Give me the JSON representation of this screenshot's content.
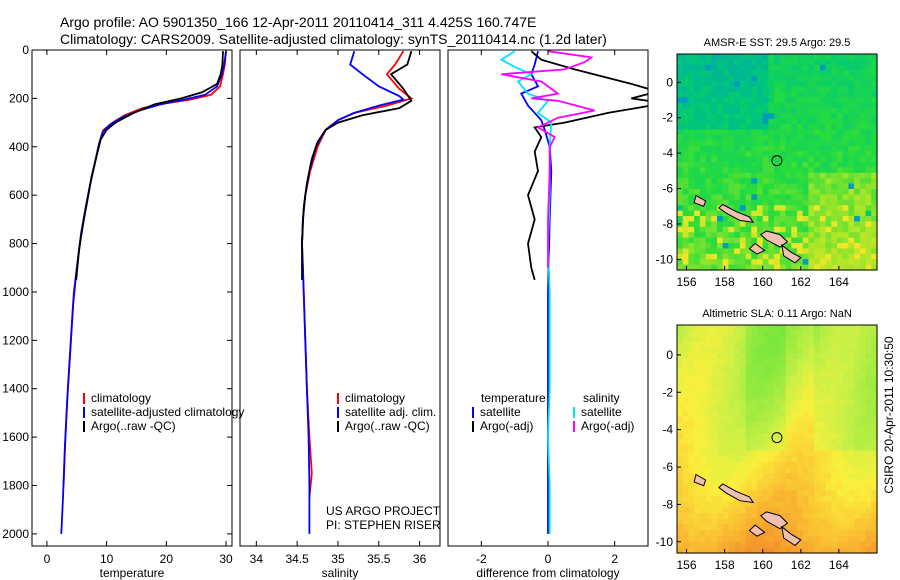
{
  "header": {
    "line1": "Argo profile: AO 5901350_166 12-Apr-2011 20110414_311 4.425S 160.747E",
    "line2": "Climatology: CARS2009. Satellite-adjusted climatology: synTS_20110414.nc (1.2d later)"
  },
  "side_stamp": "CSIRO 20-Apr-2011 10:30:50",
  "credit": [
    "US ARGO PROJECT",
    "PI: STEPHEN RISER"
  ],
  "colors": {
    "climatology": "#ff0000",
    "satellite": "#0000ff",
    "argo": "#000000",
    "salinity_satellite": "#00e5ee",
    "salinity_argo": "#ff00ff"
  },
  "chart_data": [
    {
      "type": "line",
      "panel": "temperature",
      "xlabel": "temperature",
      "xlim": [
        -2.5,
        31
      ],
      "ylim": [
        2050,
        0
      ],
      "xticks": [
        0,
        10,
        20,
        30
      ],
      "yticks": [
        0,
        200,
        400,
        600,
        800,
        1000,
        1200,
        1400,
        1600,
        1800,
        2000
      ],
      "legend": [
        "climatology",
        "satellite-adjusted climatology",
        "Argo(..raw -QC)"
      ],
      "series": [
        {
          "name": "climatology",
          "color": "#ff0000",
          "points": [
            [
              30,
              5
            ],
            [
              29.8,
              60
            ],
            [
              29.5,
              100
            ],
            [
              29,
              150
            ],
            [
              27.5,
              185
            ],
            [
              24,
              205
            ],
            [
              20,
              220
            ],
            [
              16,
              240
            ],
            [
              13,
              270
            ],
            [
              11,
              300
            ],
            [
              9.5,
              330
            ],
            [
              8.8,
              380
            ],
            [
              8.2,
              450
            ],
            [
              7.3,
              550
            ],
            [
              6.5,
              650
            ],
            [
              5.8,
              750
            ],
            [
              5,
              900
            ],
            [
              4.5,
              1000
            ],
            [
              4,
              1200
            ],
            [
              3.5,
              1400
            ],
            [
              3.1,
              1600
            ],
            [
              2.8,
              1800
            ]
          ]
        },
        {
          "name": "satellite-adjusted climatology",
          "color": "#0000ff",
          "points": [
            [
              30,
              5
            ],
            [
              29.7,
              60
            ],
            [
              29.3,
              100
            ],
            [
              28.5,
              150
            ],
            [
              26.5,
              185
            ],
            [
              23,
              205
            ],
            [
              19,
              225
            ],
            [
              15.5,
              250
            ],
            [
              12.5,
              280
            ],
            [
              10.5,
              310
            ],
            [
              9.3,
              340
            ],
            [
              8.6,
              400
            ],
            [
              8,
              470
            ],
            [
              7.2,
              560
            ],
            [
              6.5,
              650
            ],
            [
              5.7,
              760
            ],
            [
              5,
              900
            ],
            [
              4.4,
              1050
            ],
            [
              3.9,
              1250
            ],
            [
              3.4,
              1450
            ],
            [
              3,
              1650
            ],
            [
              2.7,
              1850
            ],
            [
              2.4,
              2000
            ]
          ]
        },
        {
          "name": "Argo(..raw -QC)",
          "color": "#000000",
          "points": [
            [
              29.5,
              5
            ],
            [
              29.4,
              60
            ],
            [
              29.1,
              100
            ],
            [
              28.5,
              140
            ],
            [
              26,
              175
            ],
            [
              22.5,
              200
            ],
            [
              18,
              225
            ],
            [
              14.5,
              260
            ],
            [
              11.5,
              300
            ],
            [
              10,
              330
            ],
            [
              9,
              370
            ],
            [
              8.2,
              450
            ],
            [
              7.5,
              520
            ],
            [
              6.8,
              620
            ],
            [
              6.2,
              700
            ],
            [
              5.4,
              820
            ],
            [
              4.9,
              950
            ]
          ]
        }
      ]
    },
    {
      "type": "line",
      "panel": "salinity",
      "xlabel": "salinity",
      "xlim": [
        33.8,
        36.25
      ],
      "ylim": [
        2050,
        0
      ],
      "xticks": [
        34,
        34.5,
        35,
        35.5,
        36
      ],
      "legend": [
        "climatology",
        "satellite adj. clim.",
        "Argo(..raw -QC)"
      ],
      "series": [
        {
          "name": "climatology",
          "color": "#ff0000",
          "points": [
            [
              35.8,
              5
            ],
            [
              35.7,
              60
            ],
            [
              35.6,
              100
            ],
            [
              35.75,
              160
            ],
            [
              35.9,
              200
            ],
            [
              35.6,
              230
            ],
            [
              35.2,
              260
            ],
            [
              35,
              290
            ],
            [
              34.85,
              330
            ],
            [
              34.75,
              400
            ],
            [
              34.66,
              500
            ],
            [
              34.6,
              600
            ],
            [
              34.57,
              700
            ],
            [
              34.56,
              800
            ],
            [
              34.57,
              900
            ],
            [
              34.58,
              1000
            ],
            [
              34.6,
              1200
            ],
            [
              34.62,
              1400
            ],
            [
              34.65,
              1600
            ],
            [
              34.68,
              1750
            ],
            [
              34.65,
              1850
            ]
          ]
        },
        {
          "name": "satellite adj. clim.",
          "color": "#0000ff",
          "points": [
            [
              35.2,
              5
            ],
            [
              35.15,
              60
            ],
            [
              35.3,
              100
            ],
            [
              35.5,
              150
            ],
            [
              35.75,
              190
            ],
            [
              35.8,
              205
            ],
            [
              35.5,
              230
            ],
            [
              35.2,
              260
            ],
            [
              35,
              290
            ],
            [
              34.85,
              330
            ],
            [
              34.73,
              400
            ],
            [
              34.65,
              500
            ],
            [
              34.6,
              600
            ],
            [
              34.57,
              700
            ],
            [
              34.56,
              800
            ],
            [
              34.57,
              900
            ],
            [
              34.58,
              1000
            ],
            [
              34.6,
              1200
            ],
            [
              34.62,
              1400
            ],
            [
              34.64,
              1600
            ],
            [
              34.65,
              1800
            ],
            [
              34.65,
              2000
            ]
          ]
        },
        {
          "name": "Argo(..raw -QC)",
          "color": "#000000",
          "points": [
            [
              35.9,
              5
            ],
            [
              35.85,
              60
            ],
            [
              35.65,
              100
            ],
            [
              35.8,
              160
            ],
            [
              35.9,
              210
            ],
            [
              35.75,
              240
            ],
            [
              35.3,
              270
            ],
            [
              35,
              300
            ],
            [
              34.85,
              330
            ],
            [
              34.75,
              380
            ],
            [
              34.68,
              450
            ],
            [
              34.62,
              550
            ],
            [
              34.58,
              650
            ],
            [
              34.56,
              800
            ],
            [
              34.56,
              950
            ]
          ]
        }
      ]
    },
    {
      "type": "line",
      "panel": "difference",
      "xlabel": "difference from climatology",
      "xlim": [
        -3,
        3
      ],
      "ylim": [
        2050,
        0
      ],
      "xticks": [
        -2,
        0,
        2
      ],
      "legend_left_title": "temperature",
      "legend_right_title": "salinity",
      "legend_left": [
        "satellite",
        "Argo(-adj)"
      ],
      "legend_right": [
        "satellite",
        "Argo(-adj)"
      ],
      "series": [
        {
          "name": "temperature satellite",
          "color": "#0000ff",
          "points": [
            [
              -0.3,
              5
            ],
            [
              -0.4,
              60
            ],
            [
              -0.5,
              100
            ],
            [
              -0.3,
              150
            ],
            [
              -0.8,
              180
            ],
            [
              -0.6,
              230
            ],
            [
              -0.2,
              290
            ],
            [
              -0.1,
              330
            ],
            [
              0.05,
              400
            ],
            [
              0.1,
              500
            ],
            [
              0.05,
              700
            ],
            [
              0,
              1000
            ],
            [
              0,
              1500
            ],
            [
              0,
              2000
            ]
          ]
        },
        {
          "name": "temperature Argo(-adj)",
          "color": "#000000",
          "points": [
            [
              -0.5,
              5
            ],
            [
              -0.2,
              40
            ],
            [
              0.8,
              80
            ],
            [
              2.5,
              140
            ],
            [
              3,
              160
            ],
            [
              3.2,
              175
            ],
            [
              2.5,
              200
            ],
            [
              3.5,
              220
            ],
            [
              1.8,
              260
            ],
            [
              0.5,
              300
            ],
            [
              -0.4,
              320
            ],
            [
              -0.2,
              360
            ],
            [
              -0.4,
              420
            ],
            [
              -0.3,
              500
            ],
            [
              -0.6,
              600
            ],
            [
              -0.4,
              700
            ],
            [
              -0.6,
              800
            ],
            [
              -0.5,
              900
            ],
            [
              -0.4,
              950
            ]
          ]
        },
        {
          "name": "salinity satellite",
          "color": "#00e5ee",
          "points": [
            [
              -1,
              5
            ],
            [
              -1.4,
              40
            ],
            [
              -1,
              70
            ],
            [
              -0.5,
              100
            ],
            [
              -0.9,
              130
            ],
            [
              -0.6,
              180
            ],
            [
              0,
              210
            ],
            [
              -0.3,
              260
            ],
            [
              0.1,
              300
            ],
            [
              0.05,
              400
            ],
            [
              0.05,
              600
            ],
            [
              0,
              800
            ],
            [
              0.05,
              1000
            ],
            [
              0.05,
              1200
            ],
            [
              0.05,
              1400
            ],
            [
              0,
              1600
            ],
            [
              0.05,
              1800
            ],
            [
              0.05,
              2000
            ]
          ]
        },
        {
          "name": "salinity Argo(-adj)",
          "color": "#ff00ff",
          "points": [
            [
              0,
              5
            ],
            [
              1.3,
              30
            ],
            [
              1.1,
              50
            ],
            [
              0.5,
              80
            ],
            [
              -1.4,
              100
            ],
            [
              -0.2,
              130
            ],
            [
              0.3,
              180
            ],
            [
              -0.5,
              200
            ],
            [
              0.3,
              210
            ],
            [
              1.4,
              250
            ],
            [
              0.3,
              280
            ],
            [
              -0.3,
              320
            ],
            [
              0.2,
              360
            ],
            [
              0.05,
              400
            ],
            [
              0.05,
              500
            ],
            [
              0,
              700
            ],
            [
              0,
              900
            ]
          ]
        }
      ]
    },
    {
      "type": "heatmap",
      "panel": "sst",
      "title": "AMSR-E SST: 29.5 Argo: 29.5",
      "xlim": [
        155.5,
        166
      ],
      "ylim": [
        -10.6,
        1.6
      ],
      "xticks": [
        156,
        158,
        160,
        162,
        164
      ],
      "yticks": [
        0,
        -2,
        -4,
        -6,
        -8,
        -10
      ],
      "marker": [
        160.747,
        -4.425
      ]
    },
    {
      "type": "heatmap",
      "panel": "sla",
      "title": "Altimetric SLA: 0.11 Argo: NaN",
      "xlim": [
        155.5,
        166
      ],
      "ylim": [
        -10.6,
        1.6
      ],
      "xticks": [
        156,
        158,
        160,
        162,
        164
      ],
      "yticks": [
        0,
        -2,
        -4,
        -6,
        -8,
        -10
      ],
      "marker": [
        160.747,
        -4.425
      ]
    }
  ]
}
